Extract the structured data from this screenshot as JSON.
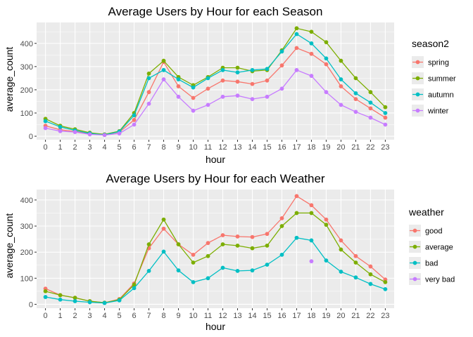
{
  "colors": {
    "panel_bg": "#EBEBEB",
    "grid": "#FFFFFF",
    "spring": "#F8766D",
    "summer": "#7CAE00",
    "autumn": "#00BFC4",
    "winter": "#C77CFF",
    "good": "#F8766D",
    "average": "#7CAE00",
    "bad": "#00BFC4",
    "very_bad": "#C77CFF"
  },
  "chart_data": [
    {
      "type": "line",
      "title": "Average Users by Hour for each Season",
      "xlabel": "hour",
      "ylabel": "average_count",
      "x": [
        0,
        1,
        2,
        3,
        4,
        5,
        6,
        7,
        8,
        9,
        10,
        11,
        12,
        13,
        14,
        15,
        16,
        17,
        18,
        19,
        20,
        21,
        22,
        23
      ],
      "ylim": [
        -15,
        490
      ],
      "yticks": [
        0,
        100,
        200,
        300,
        400
      ],
      "grid": true,
      "legend_title": "season2",
      "legend_position": "right",
      "series": [
        {
          "name": "spring",
          "color_key": "spring",
          "values": [
            45,
            28,
            20,
            10,
            6,
            18,
            70,
            190,
            320,
            215,
            165,
            205,
            240,
            235,
            225,
            240,
            305,
            380,
            355,
            310,
            215,
            160,
            120,
            80
          ]
        },
        {
          "name": "summer",
          "color_key": "summer",
          "values": [
            75,
            45,
            30,
            15,
            8,
            22,
            100,
            270,
            325,
            255,
            220,
            255,
            295,
            295,
            280,
            285,
            370,
            465,
            450,
            405,
            325,
            250,
            190,
            125
          ]
        },
        {
          "name": "autumn",
          "color_key": "autumn",
          "values": [
            65,
            40,
            25,
            12,
            6,
            20,
            90,
            250,
            285,
            245,
            210,
            250,
            285,
            275,
            285,
            290,
            365,
            440,
            400,
            335,
            245,
            185,
            145,
            100
          ]
        },
        {
          "name": "winter",
          "color_key": "winter",
          "values": [
            35,
            22,
            18,
            8,
            5,
            12,
            50,
            140,
            245,
            170,
            110,
            135,
            170,
            175,
            160,
            170,
            205,
            285,
            260,
            190,
            135,
            105,
            80,
            50
          ]
        }
      ]
    },
    {
      "type": "line",
      "title": "Average Users by Hour for each Weather",
      "xlabel": "hour",
      "ylabel": "average_count",
      "x": [
        0,
        1,
        2,
        3,
        4,
        5,
        6,
        7,
        8,
        9,
        10,
        11,
        12,
        13,
        14,
        15,
        16,
        17,
        18,
        19,
        20,
        21,
        22,
        23
      ],
      "ylim": [
        -15,
        440
      ],
      "yticks": [
        0,
        100,
        200,
        300,
        400
      ],
      "grid": true,
      "legend_title": "weather",
      "legend_position": "right",
      "series": [
        {
          "name": "good",
          "color_key": "good",
          "values": [
            60,
            35,
            25,
            12,
            6,
            20,
            80,
            215,
            290,
            230,
            190,
            235,
            265,
            260,
            258,
            270,
            330,
            415,
            380,
            325,
            245,
            185,
            145,
            95
          ]
        },
        {
          "name": "average",
          "color_key": "average",
          "values": [
            50,
            35,
            25,
            12,
            6,
            18,
            75,
            230,
            325,
            230,
            160,
            185,
            230,
            225,
            215,
            225,
            300,
            350,
            350,
            305,
            210,
            160,
            115,
            85
          ]
        },
        {
          "name": "bad",
          "color_key": "bad",
          "values": [
            28,
            18,
            12,
            8,
            5,
            15,
            62,
            128,
            202,
            130,
            85,
            100,
            140,
            128,
            130,
            152,
            190,
            255,
            245,
            168,
            125,
            103,
            78,
            58
          ]
        },
        {
          "name": "very bad",
          "color_key": "very_bad",
          "values": [
            null,
            null,
            null,
            null,
            null,
            null,
            null,
            null,
            null,
            null,
            null,
            null,
            null,
            null,
            null,
            null,
            null,
            null,
            165,
            null,
            null,
            null,
            null,
            null
          ]
        }
      ]
    }
  ]
}
